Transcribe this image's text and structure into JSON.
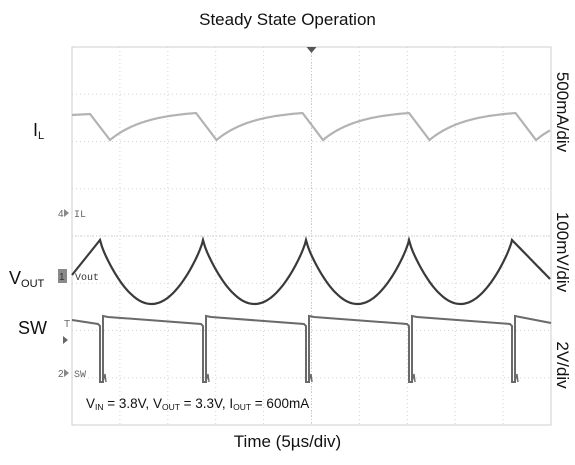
{
  "chart_data": {
    "type": "line",
    "title": "Steady State Operation",
    "xlabel": "Time (5µs/div)",
    "x_divisions": 10,
    "y_divisions": 8,
    "grid": true,
    "channels": [
      {
        "name": "IL",
        "label_main": "I",
        "label_sub": "L",
        "scale": "500mA/div",
        "color": "#b3b3b3",
        "marker": "4"
      },
      {
        "name": "Vout",
        "label_main": "V",
        "label_sub": "OUT",
        "scale": "100mV/div",
        "color": "#3a3a3a",
        "marker": "1"
      },
      {
        "name": "SW",
        "label_main": "SW",
        "label_sub": "",
        "scale": "2V/div",
        "color": "#6a6a6a",
        "marker": "2"
      }
    ],
    "trigger_marker": "T",
    "annotation": {
      "v_in": "V",
      "v_in_sub": "IN",
      "v_in_val": " = 3.8V, ",
      "v_out": "V",
      "v_out_sub": "OUT",
      "v_out_val": " = 3.3V, ",
      "i_out": "I",
      "i_out_sub": "OUT",
      "i_out_val": " = 600mA"
    }
  }
}
